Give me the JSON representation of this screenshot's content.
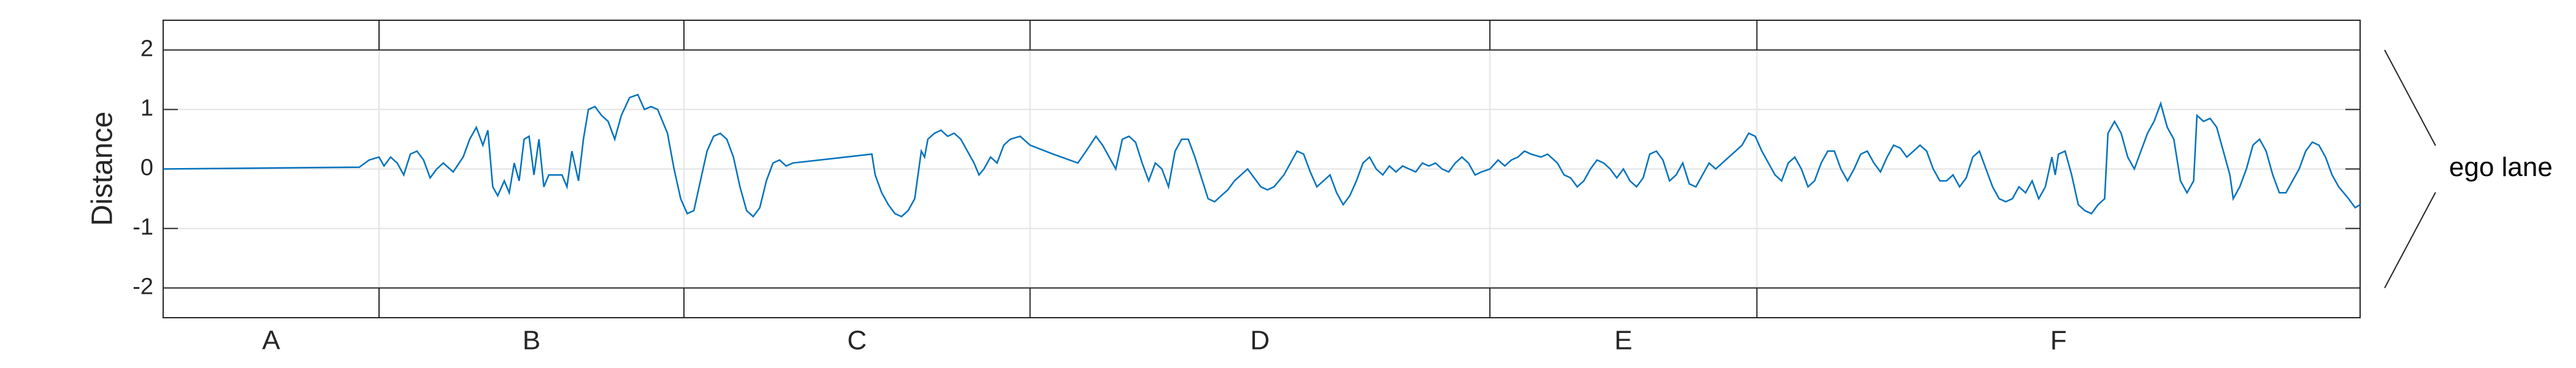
{
  "chart_data": {
    "type": "line",
    "y_label": "Distance",
    "annotation": "ego lane",
    "color": "#0072bd",
    "grid": true,
    "xlim": [
      0,
      1333
    ],
    "ylim": [
      -2.5,
      2.5
    ],
    "yticks": [
      -2,
      -1,
      0,
      1,
      2
    ],
    "lane_lines": [
      -2,
      2
    ],
    "categories": [
      "A",
      "B",
      "C",
      "D",
      "E",
      "F"
    ],
    "boundaries": [
      131,
      316,
      526,
      805,
      967
    ],
    "x": [
      0,
      119,
      125,
      131,
      134,
      138,
      142,
      146,
      150,
      154,
      158,
      162,
      166,
      170,
      176,
      182,
      186,
      190,
      194,
      197,
      200,
      203,
      207,
      210,
      213,
      216,
      219,
      222,
      225,
      228,
      231,
      234,
      242,
      245,
      248,
      252,
      255,
      258,
      262,
      266,
      270,
      274,
      278,
      283,
      288,
      292,
      296,
      300,
      306,
      310,
      314,
      318,
      322,
      326,
      330,
      334,
      338,
      342,
      346,
      350,
      354,
      358,
      362,
      366,
      370,
      374,
      378,
      382,
      430,
      432,
      436,
      440,
      444,
      448,
      452,
      456,
      460,
      462,
      464,
      468,
      472,
      476,
      480,
      484,
      488,
      492,
      495,
      498,
      502,
      506,
      510,
      514,
      520,
      526,
      540,
      555,
      560,
      566,
      570,
      574,
      578,
      582,
      586,
      590,
      594,
      598,
      602,
      606,
      610,
      614,
      618,
      622,
      626,
      630,
      634,
      638,
      642,
      646,
      650,
      654,
      658,
      662,
      666,
      670,
      674,
      680,
      684,
      688,
      692,
      696,
      700,
      704,
      708,
      712,
      716,
      720,
      724,
      728,
      732,
      736,
      740,
      744,
      748,
      752,
      756,
      760,
      764,
      768,
      772,
      776,
      780,
      784,
      788,
      792,
      796,
      800,
      805,
      810,
      814,
      818,
      822,
      826,
      830,
      836,
      840,
      846,
      850,
      854,
      858,
      862,
      866,
      870,
      874,
      878,
      882,
      886,
      890,
      894,
      898,
      902,
      906,
      910,
      914,
      918,
      922,
      926,
      930,
      934,
      938,
      942,
      946,
      950,
      954,
      958,
      962,
      966,
      970,
      974,
      978,
      982,
      986,
      990,
      994,
      998,
      1002,
      1006,
      1010,
      1014,
      1018,
      1022,
      1026,
      1030,
      1034,
      1038,
      1042,
      1046,
      1050,
      1054,
      1058,
      1062,
      1066,
      1070,
      1074,
      1078,
      1082,
      1086,
      1090,
      1094,
      1098,
      1102,
      1106,
      1110,
      1114,
      1118,
      1122,
      1126,
      1130,
      1134,
      1138,
      1142,
      1146,
      1148,
      1150,
      1154,
      1158,
      1162,
      1166,
      1170,
      1174,
      1178,
      1180,
      1184,
      1188,
      1192,
      1196,
      1200,
      1204,
      1208,
      1212,
      1216,
      1220,
      1224,
      1228,
      1232,
      1234,
      1238,
      1242,
      1246,
      1250,
      1254,
      1256,
      1260,
      1264,
      1268,
      1272,
      1276,
      1280,
      1284,
      1288,
      1292,
      1296,
      1300,
      1304,
      1308,
      1312,
      1316,
      1320,
      1326,
      1330,
      1333
    ],
    "values": [
      0,
      0.03,
      0.15,
      0.2,
      0.05,
      0.2,
      0.1,
      -0.1,
      0.25,
      0.3,
      0.15,
      -0.15,
      0,
      0.1,
      -0.05,
      0.2,
      0.5,
      0.7,
      0.4,
      0.65,
      -0.3,
      -0.45,
      -0.2,
      -0.4,
      0.1,
      -0.2,
      0.5,
      0.55,
      -0.1,
      0.5,
      -0.3,
      -0.1,
      -0.1,
      -0.3,
      0.3,
      -0.2,
      0.5,
      1.0,
      1.05,
      0.9,
      0.8,
      0.5,
      0.9,
      1.2,
      1.25,
      1.0,
      1.05,
      1.0,
      0.6,
      0,
      -0.5,
      -0.75,
      -0.7,
      -0.2,
      0.3,
      0.55,
      0.6,
      0.5,
      0.2,
      -0.3,
      -0.7,
      -0.8,
      -0.65,
      -0.2,
      0.1,
      0.15,
      0.05,
      0.1,
      0.25,
      -0.1,
      -0.4,
      -0.6,
      -0.75,
      -0.8,
      -0.7,
      -0.5,
      0.3,
      0.2,
      0.5,
      0.6,
      0.65,
      0.55,
      0.6,
      0.5,
      0.3,
      0.1,
      -0.1,
      0,
      0.2,
      0.1,
      0.4,
      0.5,
      0.55,
      0.4,
      0.25,
      0.1,
      0.3,
      0.55,
      0.4,
      0.2,
      0,
      0.5,
      0.55,
      0.45,
      0.1,
      -0.2,
      0.1,
      0,
      -0.3,
      0.3,
      0.5,
      0.5,
      0.2,
      -0.15,
      -0.5,
      -0.55,
      -0.45,
      -0.35,
      -0.2,
      -0.1,
      0,
      -0.15,
      -0.3,
      -0.35,
      -0.3,
      -0.1,
      0.1,
      0.3,
      0.25,
      -0.05,
      -0.3,
      -0.2,
      -0.1,
      -0.4,
      -0.6,
      -0.45,
      -0.2,
      0.1,
      0.2,
      0,
      -0.1,
      0.05,
      -0.05,
      0.05,
      0,
      -0.05,
      0.1,
      0.05,
      0.1,
      0,
      -0.05,
      0.1,
      0.2,
      0.1,
      -0.1,
      -0.05,
      0,
      0.15,
      0.05,
      0.15,
      0.2,
      0.3,
      0.25,
      0.2,
      0.25,
      0.1,
      -0.1,
      -0.15,
      -0.3,
      -0.2,
      0,
      0.15,
      0.1,
      0,
      -0.15,
      0,
      -0.2,
      -0.3,
      -0.15,
      0.25,
      0.3,
      0.15,
      -0.2,
      -0.1,
      0.1,
      -0.25,
      -0.3,
      -0.1,
      0.1,
      0,
      0.1,
      0.2,
      0.3,
      0.4,
      0.6,
      0.55,
      0.3,
      0.1,
      -0.1,
      -0.2,
      0.1,
      0.2,
      0,
      -0.3,
      -0.2,
      0.1,
      0.3,
      0.3,
      0,
      -0.2,
      0,
      0.25,
      0.3,
      0.1,
      -0.05,
      0.2,
      0.4,
      0.35,
      0.2,
      0.3,
      0.4,
      0.3,
      0,
      -0.2,
      -0.2,
      -0.1,
      -0.3,
      -0.15,
      0.2,
      0.3,
      0,
      -0.3,
      -0.5,
      -0.55,
      -0.5,
      -0.3,
      -0.4,
      -0.2,
      -0.5,
      -0.3,
      0.2,
      -0.1,
      0.25,
      0.3,
      -0.1,
      -0.6,
      -0.7,
      -0.75,
      -0.6,
      -0.5,
      0.6,
      0.8,
      0.6,
      0.2,
      0,
      0.3,
      0.6,
      0.8,
      1.1,
      0.7,
      0.5,
      -0.2,
      -0.4,
      -0.2,
      0.9,
      0.8,
      0.85,
      0.7,
      0.3,
      -0.1,
      -0.5,
      -0.3,
      0,
      0.4,
      0.5,
      0.3,
      -0.1,
      -0.4,
      -0.4,
      -0.2,
      0,
      0.3,
      0.45,
      0.4,
      0.2,
      -0.1,
      -0.3,
      -0.5,
      -0.65,
      -0.6
    ]
  }
}
